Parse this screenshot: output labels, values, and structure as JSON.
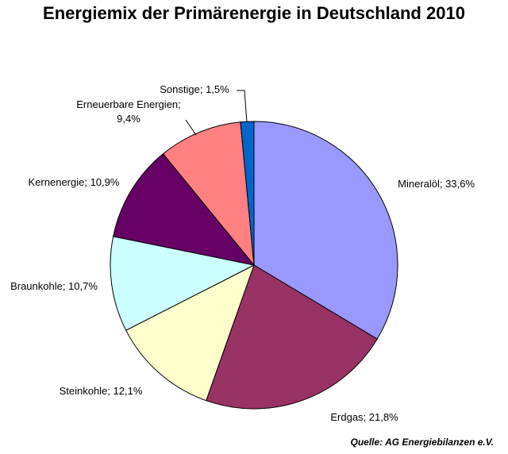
{
  "title": "Energiemix der Primärenergie in Deutschland 2010",
  "source": "Quelle: AG Energiebilanzen e.V.",
  "chart_data": {
    "type": "pie",
    "title": "Energiemix der Primärenergie in Deutschland 2010",
    "start_angle_deg": 0,
    "direction": "clockwise",
    "slices": [
      {
        "label": "Mineralöl; 33,6%",
        "value": 33.6,
        "color": "#9999ff"
      },
      {
        "label": "Erdgas; 21,8%",
        "value": 21.8,
        "color": "#993366"
      },
      {
        "label": "Steinkohle; 12,1%",
        "value": 12.1,
        "color": "#ffffcc"
      },
      {
        "label": "Braunkohle; 10,7%",
        "value": 10.7,
        "color": "#ccffff"
      },
      {
        "label": "Kernenergie; 10,9%",
        "value": 10.9,
        "color": "#660066"
      },
      {
        "label": "Erneuerbare Energien; 9,4%",
        "label_lines": [
          "Erneuerbare Energien;",
          "9,4%"
        ],
        "value": 9.4,
        "color": "#ff8080"
      },
      {
        "label": "Sonstige; 1,5%",
        "value": 1.5,
        "color": "#0066cc"
      }
    ]
  }
}
